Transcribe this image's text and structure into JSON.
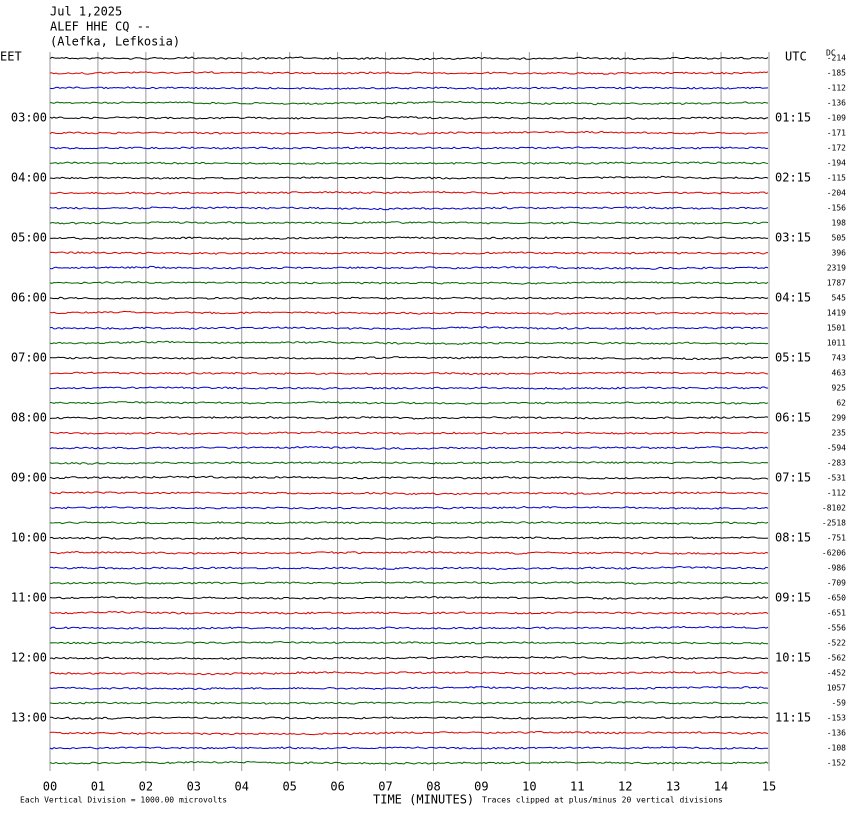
{
  "header": {
    "lines": [
      "Jul 1,2025",
      "ALEF HHE CQ --",
      "(Alefka, Lefkosia)"
    ]
  },
  "left_title": "EET",
  "right_title": "UTC",
  "dc_title": "DC",
  "left_labels": [
    "03:00",
    "04:00",
    "05:00",
    "06:00",
    "07:00",
    "08:00",
    "09:00",
    "10:00",
    "11:00",
    "12:00",
    "13:00"
  ],
  "right_labels": [
    "01:15",
    "02:15",
    "03:15",
    "04:15",
    "05:15",
    "06:15",
    "07:15",
    "08:15",
    "09:15",
    "10:15",
    "11:15"
  ],
  "dc_values": [
    "-214",
    "-185",
    "-112",
    "-136",
    "-109",
    "-171",
    "-172",
    "-194",
    "-115",
    "-204",
    "-156",
    "198",
    "505",
    "396",
    "2319",
    "1787",
    "545",
    "1419",
    "1501",
    "1011",
    "743",
    "463",
    "925",
    "62",
    "299",
    "235",
    "-594",
    "-283",
    "-531",
    "-112",
    "-8102",
    "-2518",
    "-751",
    "-6206",
    "-986",
    "-709",
    "-650",
    "-651",
    "-556",
    "-522",
    "-562",
    "-452",
    "1057",
    "-59",
    "-153",
    "-136",
    "-108",
    "-152"
  ],
  "x_ticks": [
    "00",
    "01",
    "02",
    "03",
    "04",
    "05",
    "06",
    "07",
    "08",
    "09",
    "10",
    "11",
    "12",
    "13",
    "14",
    "15"
  ],
  "x_title": "TIME (MINUTES)",
  "footer_left": "Each Vertical Division = 1000.00 microvolts",
  "footer_right": "Traces clipped at plus/minus 20 vertical divisions"
}
